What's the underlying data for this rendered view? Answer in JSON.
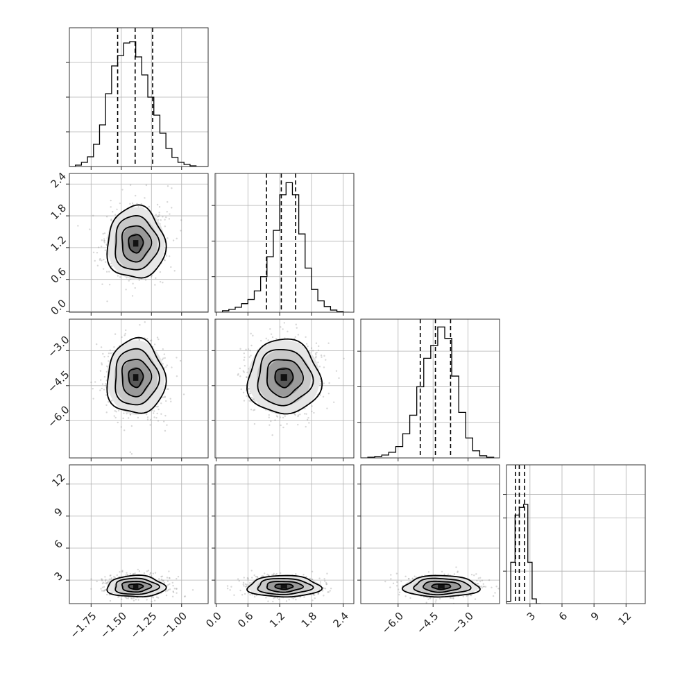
{
  "chart_data": {
    "type": "corner",
    "grid": true,
    "parameters": [
      {
        "range": [
          -1.93,
          -0.78
        ],
        "ticks": [
          -1.75,
          -1.5,
          -1.25,
          -1.0
        ],
        "tick_labels": [
          "−1.75",
          "−1.50",
          "−1.25",
          "−1.00"
        ]
      },
      {
        "range": [
          -0.02,
          2.6
        ],
        "ticks": [
          0.0,
          0.6,
          1.2,
          1.8,
          2.4
        ],
        "tick_labels": [
          "0.0",
          "0.6",
          "1.2",
          "1.8",
          "2.4"
        ]
      },
      {
        "range": [
          -7.6,
          -1.65
        ],
        "ticks": [
          -6.0,
          -4.5,
          -3.0
        ],
        "tick_labels": [
          "−6.0",
          "−4.5",
          "−3.0"
        ]
      },
      {
        "range": [
          0.8,
          13.8
        ],
        "ticks": [
          3,
          6,
          9,
          12
        ],
        "tick_labels": [
          "3",
          "6",
          "9",
          "12"
        ]
      }
    ],
    "histograms": [
      {
        "bin_edges": [
          -1.93,
          -1.88,
          -1.83,
          -1.78,
          -1.73,
          -1.68,
          -1.63,
          -1.58,
          -1.53,
          -1.48,
          -1.43,
          -1.38,
          -1.33,
          -1.28,
          -1.23,
          -1.18,
          -1.13,
          -1.08,
          -1.03,
          -0.98,
          -0.93,
          -0.88,
          -0.83,
          -0.78
        ],
        "counts": [
          0,
          2,
          6,
          14,
          32,
          60,
          105,
          145,
          160,
          178,
          180,
          158,
          132,
          100,
          74,
          48,
          26,
          13,
          6,
          3,
          1,
          0,
          0
        ],
        "quantiles": [
          -1.53,
          -1.385,
          -1.24
        ],
        "ymax": 200,
        "ticks": [
          50,
          100,
          150
        ]
      },
      {
        "bin_edges": [
          0.0,
          0.12,
          0.24,
          0.36,
          0.48,
          0.6,
          0.72,
          0.84,
          0.96,
          1.08,
          1.2,
          1.32,
          1.44,
          1.56,
          1.68,
          1.8,
          1.92,
          2.04,
          2.16,
          2.28,
          2.4,
          2.52
        ],
        "counts": [
          0,
          2,
          4,
          7,
          12,
          18,
          30,
          50,
          78,
          115,
          165,
          182,
          165,
          110,
          62,
          32,
          16,
          8,
          3,
          1,
          0
        ],
        "quantiles": [
          0.95,
          1.23,
          1.5
        ],
        "ymax": 195,
        "ticks": [
          50,
          100,
          150
        ]
      },
      {
        "bin_edges": [
          -7.6,
          -7.3,
          -7.0,
          -6.7,
          -6.4,
          -6.1,
          -5.8,
          -5.5,
          -5.2,
          -4.9,
          -4.6,
          -4.3,
          -4.0,
          -3.7,
          -3.4,
          -3.1,
          -2.8,
          -2.5,
          -2.2,
          -1.9
        ],
        "counts": [
          0,
          1,
          2,
          4,
          8,
          16,
          34,
          60,
          100,
          140,
          158,
          184,
          168,
          115,
          64,
          28,
          10,
          3,
          1
        ],
        "quantiles": [
          -5.05,
          -4.4,
          -3.75
        ],
        "ymax": 195,
        "ticks": [
          50,
          100,
          150
        ]
      },
      {
        "bin_edges": [
          0.8,
          1.2,
          1.6,
          2.0,
          2.4,
          2.8,
          3.2,
          3.6,
          4.0
        ],
        "counts": [
          4,
          70,
          150,
          163,
          168,
          70,
          8,
          0
        ],
        "quantiles": [
          1.65,
          2.0,
          2.5
        ],
        "ymax": 235,
        "ticks": [
          55,
          145,
          185
        ]
      }
    ],
    "joint": [
      {
        "x": 0,
        "y": 1,
        "mean": [
          -1.38,
          1.28
        ],
        "sd": [
          0.12,
          0.34
        ],
        "rho": 0.12
      },
      {
        "x": 0,
        "y": 2,
        "mean": [
          -1.38,
          -4.15
        ],
        "sd": [
          0.12,
          0.8
        ],
        "rho": 0.0
      },
      {
        "x": 1,
        "y": 2,
        "mean": [
          1.28,
          -4.15
        ],
        "sd": [
          0.34,
          0.8
        ],
        "rho": 0.0
      },
      {
        "x": 0,
        "y": 3,
        "mean": [
          -1.38,
          2.4
        ],
        "sd": [
          0.12,
          0.5
        ],
        "rho": 0.0
      },
      {
        "x": 1,
        "y": 3,
        "mean": [
          1.28,
          2.4
        ],
        "sd": [
          0.34,
          0.5
        ],
        "rho": 0.0
      },
      {
        "x": 2,
        "y": 3,
        "mean": [
          -4.15,
          2.4
        ],
        "sd": [
          0.8,
          0.5
        ],
        "rho": 0.0
      }
    ],
    "contour_levels": [
      0.5,
      1.0,
      1.5,
      2.0
    ]
  }
}
